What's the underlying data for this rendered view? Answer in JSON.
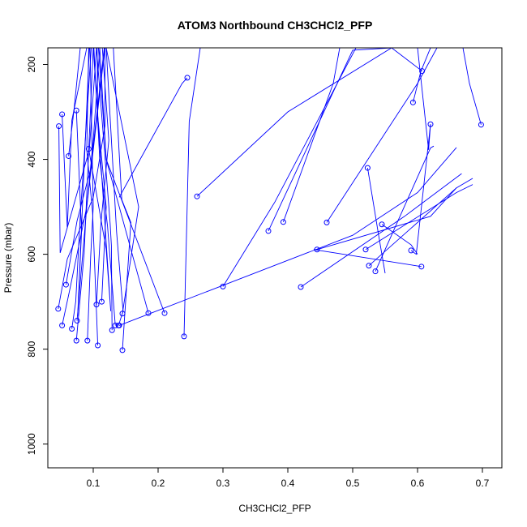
{
  "chart_data": {
    "type": "line",
    "title": "ATOM3 Northbound CH3CHCl2_PFP",
    "xlabel": "CH3CHCl2_PFP",
    "ylabel": "Pressure (mbar)",
    "xlim": [
      0.03,
      0.73
    ],
    "ylim": [
      1050,
      165
    ],
    "y_reversed": true,
    "grid": false,
    "legend": "none",
    "marker": "open-circle",
    "color": "#0000ff",
    "x_ticks": [
      0.1,
      0.2,
      0.3,
      0.4,
      0.5,
      0.6,
      0.7
    ],
    "x_tick_labels": [
      "0.1",
      "0.2",
      "0.3",
      "0.4",
      "0.5",
      "0.6",
      "0.7"
    ],
    "y_ticks": [
      200,
      400,
      600,
      800,
      1000
    ],
    "y_tick_labels": [
      "200",
      "400",
      "600",
      "800",
      "1000"
    ],
    "series": [
      {
        "profiles": [
          [
            [
              0.046,
              715
            ],
            [
              0.06,
              610
            ],
            [
              0.1,
              480
            ],
            [
              0.118,
              330
            ],
            [
              0.118,
              165
            ]
          ],
          [
            [
              0.052,
              750
            ],
            [
              0.063,
              680
            ],
            [
              0.09,
              500
            ],
            [
              0.118,
              165
            ]
          ],
          [
            [
              0.058,
              664
            ],
            [
              0.075,
              530
            ],
            [
              0.096,
              420
            ],
            [
              0.117,
              165
            ]
          ],
          [
            [
              0.047,
              330
            ],
            [
              0.049,
              597
            ],
            [
              0.094,
              380
            ],
            [
              0.105,
              165
            ]
          ],
          [
            [
              0.067,
              757
            ],
            [
              0.073,
              700
            ],
            [
              0.08,
              520
            ],
            [
              0.097,
              165
            ]
          ],
          [
            [
              0.075,
              740
            ],
            [
              0.09,
              500
            ],
            [
              0.1,
              360
            ],
            [
              0.11,
              165
            ]
          ],
          [
            [
              0.062,
              393
            ],
            [
              0.07,
              300
            ],
            [
              0.08,
              165
            ]
          ],
          [
            [
              0.052,
              305
            ],
            [
              0.06,
              545
            ],
            [
              0.067,
              318
            ],
            [
              0.09,
              165
            ]
          ],
          [
            [
              0.074,
              297
            ],
            [
              0.082,
              552
            ],
            [
              0.076,
              730
            ],
            [
              0.094,
              165
            ]
          ],
          [
            [
              0.074,
              782
            ],
            [
              0.086,
              598
            ],
            [
              0.1,
              165
            ]
          ],
          [
            [
              0.091,
              782
            ],
            [
              0.096,
              606
            ],
            [
              0.1,
              500
            ],
            [
              0.095,
              165
            ]
          ],
          [
            [
              0.107,
              792
            ],
            [
              0.099,
              512
            ],
            [
              0.09,
              380
            ],
            [
              0.093,
              165
            ]
          ],
          [
            [
              0.093,
              378
            ],
            [
              0.12,
              590
            ],
            [
              0.127,
              720
            ],
            [
              0.1,
              165
            ]
          ],
          [
            [
              0.105,
              706
            ],
            [
              0.112,
              532
            ],
            [
              0.124,
              360
            ],
            [
              0.114,
              165
            ]
          ],
          [
            [
              0.113,
              700
            ],
            [
              0.12,
              500
            ],
            [
              0.107,
              310
            ],
            [
              0.106,
              165
            ]
          ],
          [
            [
              0.129,
              760
            ],
            [
              0.128,
              582
            ],
            [
              0.126,
              534
            ],
            [
              0.105,
              165
            ]
          ],
          [
            [
              0.134,
              750
            ],
            [
              0.122,
              540
            ],
            [
              0.11,
              400
            ],
            [
              0.101,
              165
            ]
          ],
          [
            [
              0.139,
              750
            ],
            [
              0.146,
              720
            ],
            [
              0.136,
              553
            ],
            [
              0.12,
              165
            ]
          ],
          [
            [
              0.145,
              802
            ],
            [
              0.158,
              533
            ],
            [
              0.144,
              485
            ],
            [
              0.131,
              165
            ]
          ],
          [
            [
              0.145,
              725
            ],
            [
              0.17,
              500
            ],
            [
              0.12,
              165
            ]
          ],
          [
            [
              0.185,
              724
            ],
            [
              0.12,
              400
            ],
            [
              0.108,
              165
            ]
          ],
          [
            [
              0.21,
              724
            ],
            [
              0.12,
              400
            ],
            [
              0.11,
              165
            ]
          ],
          [
            [
              0.24,
              773
            ],
            [
              0.248,
              320
            ],
            [
              0.265,
              165
            ]
          ],
          [
            [
              0.245,
              228
            ],
            [
              0.237,
              240
            ],
            [
              0.14,
              480
            ]
          ],
          [
            [
              0.26,
              478
            ],
            [
              0.4,
              300
            ],
            [
              0.56,
              165
            ]
          ],
          [
            [
              0.3,
              668
            ],
            [
              0.38,
              490
            ],
            [
              0.505,
              165
            ]
          ],
          [
            [
              0.37,
              551
            ],
            [
              0.5,
              170
            ],
            [
              0.56,
              165
            ]
          ],
          [
            [
              0.393,
              532
            ],
            [
              0.47,
              240
            ],
            [
              0.48,
              165
            ]
          ],
          [
            [
              0.42,
              669
            ],
            [
              0.58,
              520
            ],
            [
              0.668,
              430
            ]
          ],
          [
            [
              0.445,
              590
            ],
            [
              0.62,
              520
            ],
            [
              0.66,
              460
            ]
          ],
          [
            [
              0.46,
              533
            ],
            [
              0.6,
              240
            ],
            [
              0.63,
              165
            ]
          ],
          [
            [
              0.52,
              590
            ],
            [
              0.66,
              470
            ],
            [
              0.685,
              453
            ]
          ],
          [
            [
              0.525,
              624
            ],
            [
              0.66,
              460
            ],
            [
              0.685,
              440
            ]
          ],
          [
            [
              0.535,
              636
            ],
            [
              0.62,
              376
            ],
            [
              0.625,
              372
            ]
          ],
          [
            [
              0.545,
              537
            ],
            [
              0.59,
              580
            ],
            [
              0.6,
              600
            ]
          ],
          [
            [
              0.59,
              592
            ],
            [
              0.598,
              600
            ],
            [
              0.62,
              326
            ]
          ],
          [
            [
              0.606,
              626
            ],
            [
              0.44,
              590
            ],
            [
              0.445,
              590
            ]
          ],
          [
            [
              0.523,
              418
            ],
            [
              0.54,
              560
            ],
            [
              0.55,
              640
            ]
          ],
          [
            [
              0.593,
              280
            ],
            [
              0.605,
              215
            ],
            [
              0.62,
              165
            ]
          ],
          [
            [
              0.62,
              326
            ],
            [
              0.617,
              380
            ],
            [
              0.6,
              165
            ]
          ],
          [
            [
              0.698,
              327
            ],
            [
              0.68,
              240
            ],
            [
              0.67,
              165
            ]
          ],
          [
            [
              0.607,
              214
            ],
            [
              0.56,
              165
            ]
          ],
          [
            [
              0.14,
              750
            ],
            [
              0.5,
              560
            ],
            [
              0.6,
              470
            ],
            [
              0.66,
              375
            ]
          ]
        ]
      }
    ]
  }
}
